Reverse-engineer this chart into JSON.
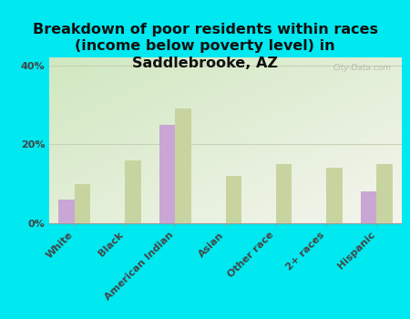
{
  "title": "Breakdown of poor residents within races\n(income below poverty level) in\nSaddlebrooke, AZ",
  "categories": [
    "White",
    "Black",
    "American Indian",
    "Asian",
    "Other race",
    "2+ races",
    "Hispanic"
  ],
  "saddlebrooke": [
    6,
    0,
    25,
    0,
    0,
    0,
    8
  ],
  "arizona": [
    10,
    16,
    29,
    12,
    15,
    14,
    15
  ],
  "saddlebrooke_color": "#c9a6d4",
  "arizona_color": "#c8d4a0",
  "background_outer": "#00e8f0",
  "background_plot": "#e8f0d8",
  "ylim": [
    0,
    42
  ],
  "yticks": [
    0,
    20,
    40
  ],
  "ytick_labels": [
    "0%",
    "20%",
    "40%"
  ],
  "grid_color": "#c8d0b8",
  "watermark": "City-Data.com",
  "bar_width": 0.32,
  "title_fontsize": 11.5,
  "tick_fontsize": 8,
  "legend_fontsize": 10
}
